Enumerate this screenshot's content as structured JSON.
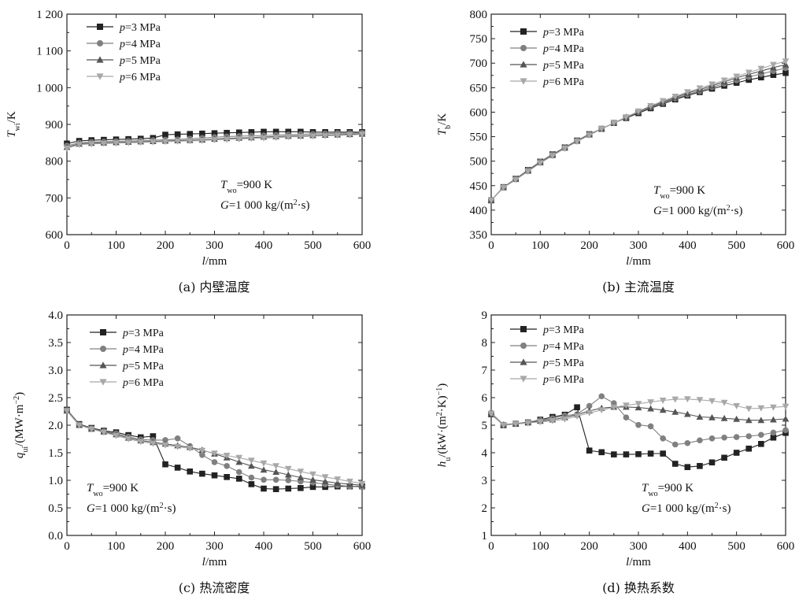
{
  "chart_data": [
    {
      "id": "a",
      "type": "line",
      "caption": "(a) 内壁温度",
      "xlabel": "l/mm",
      "ylabel": "T_wi/K",
      "xlim": [
        0,
        600
      ],
      "ylim": [
        600,
        1200
      ],
      "xticks": [
        0,
        100,
        200,
        300,
        400,
        500,
        600
      ],
      "yticks": [
        600,
        700,
        800,
        900,
        1000,
        1100,
        1200
      ],
      "ytick_labels": [
        "600",
        "700",
        "800",
        "900",
        "1 000",
        "1 100",
        "1 200"
      ],
      "legend_position": "top-left",
      "annotations": [
        "T_wo=900 K",
        "G=1 000 kg/(m²·s)"
      ],
      "x": [
        0,
        25,
        50,
        75,
        100,
        125,
        150,
        175,
        200,
        225,
        250,
        275,
        300,
        325,
        350,
        375,
        400,
        425,
        450,
        475,
        500,
        525,
        550,
        575,
        600
      ],
      "series": [
        {
          "name": "p=3 MPa",
          "marker": "square",
          "color": "#222222",
          "values": [
            848,
            855,
            857,
            858,
            859,
            860,
            861,
            863,
            872,
            873,
            874,
            875,
            876,
            877,
            878,
            879,
            880,
            880,
            880,
            880,
            879,
            879,
            879,
            879,
            879
          ]
        },
        {
          "name": "p=4 MPa",
          "marker": "circle",
          "color": "#808080",
          "values": [
            842,
            850,
            852,
            853,
            854,
            855,
            856,
            857,
            858,
            859,
            861,
            863,
            865,
            867,
            868,
            869,
            870,
            871,
            872,
            873,
            874,
            875,
            876,
            876,
            877
          ]
        },
        {
          "name": "p=5 MPa",
          "marker": "triangle-up",
          "color": "#555555",
          "values": [
            838,
            847,
            849,
            850,
            851,
            852,
            853,
            854,
            855,
            856,
            857,
            858,
            860,
            862,
            863,
            864,
            866,
            867,
            868,
            869,
            870,
            871,
            872,
            873,
            874
          ]
        },
        {
          "name": "p=6 MPa",
          "marker": "triangle-down",
          "color": "#a8a8a8",
          "values": [
            835,
            845,
            847,
            848,
            849,
            850,
            851,
            852,
            853,
            854,
            855,
            856,
            858,
            859,
            860,
            862,
            863,
            864,
            866,
            867,
            868,
            869,
            870,
            871,
            873
          ]
        }
      ]
    },
    {
      "id": "b",
      "type": "line",
      "caption": "(b) 主流温度",
      "xlabel": "l/mm",
      "ylabel": "T_b/K",
      "xlim": [
        0,
        600
      ],
      "ylim": [
        350,
        800
      ],
      "xticks": [
        0,
        100,
        200,
        300,
        400,
        500,
        600
      ],
      "yticks": [
        350,
        400,
        450,
        500,
        550,
        600,
        650,
        700,
        750,
        800
      ],
      "ytick_labels": [
        "350",
        "400",
        "450",
        "500",
        "550",
        "600",
        "650",
        "700",
        "750",
        "800"
      ],
      "legend_position": "top-left",
      "annotations": [
        "T_wo=900 K",
        "G=1 000 kg/(m²·s)"
      ],
      "x": [
        0,
        25,
        50,
        75,
        100,
        125,
        150,
        175,
        200,
        225,
        250,
        275,
        300,
        325,
        350,
        375,
        400,
        425,
        450,
        475,
        500,
        525,
        550,
        575,
        600
      ],
      "series": [
        {
          "name": "p=3 MPa",
          "marker": "square",
          "color": "#222222",
          "values": [
            420,
            447,
            464,
            482,
            499,
            514,
            528,
            542,
            555,
            566,
            578,
            588,
            598,
            608,
            617,
            626,
            634,
            641,
            648,
            654,
            660,
            666,
            671,
            676,
            680
          ]
        },
        {
          "name": "p=4 MPa",
          "marker": "circle",
          "color": "#808080",
          "values": [
            420,
            447,
            464,
            482,
            499,
            514,
            528,
            542,
            555,
            566,
            578,
            589,
            600,
            610,
            619,
            628,
            636,
            643,
            651,
            658,
            665,
            672,
            678,
            684,
            690
          ]
        },
        {
          "name": "p=5 MPa",
          "marker": "triangle-up",
          "color": "#555555",
          "values": [
            420,
            446,
            463,
            480,
            497,
            512,
            527,
            541,
            554,
            566,
            578,
            590,
            601,
            611,
            621,
            630,
            639,
            646,
            654,
            662,
            670,
            677,
            684,
            691,
            697
          ]
        },
        {
          "name": "p=6 MPa",
          "marker": "triangle-down",
          "color": "#a8a8a8",
          "values": [
            420,
            446,
            462,
            479,
            496,
            511,
            526,
            540,
            553,
            566,
            578,
            590,
            602,
            613,
            623,
            632,
            641,
            649,
            657,
            665,
            673,
            681,
            689,
            697,
            704
          ]
        }
      ]
    },
    {
      "id": "c",
      "type": "line",
      "caption": "(c) 热流密度",
      "xlabel": "l/mm",
      "ylabel": "q_ui/(MW·m⁻²)",
      "xlim": [
        0,
        600
      ],
      "ylim": [
        0,
        4
      ],
      "xticks": [
        0,
        100,
        200,
        300,
        400,
        500,
        600
      ],
      "yticks": [
        0,
        0.5,
        1,
        1.5,
        2,
        2.5,
        3,
        3.5,
        4
      ],
      "ytick_labels": [
        "0.0",
        "0.5",
        "1.0",
        "1.5",
        "2.0",
        "2.5",
        "3.0",
        "3.5",
        "4.0"
      ],
      "legend_position": "top-center",
      "annotations": [
        "T_wo=900 K",
        "G=1 000 kg/(m²·s)"
      ],
      "x": [
        0,
        25,
        50,
        75,
        100,
        125,
        150,
        175,
        200,
        225,
        250,
        275,
        300,
        325,
        350,
        375,
        400,
        425,
        450,
        475,
        500,
        525,
        550,
        575,
        600
      ],
      "series": [
        {
          "name": "p=3 MPa",
          "marker": "square",
          "color": "#222222",
          "values": [
            2.28,
            2.02,
            1.95,
            1.9,
            1.87,
            1.82,
            1.78,
            1.8,
            1.29,
            1.23,
            1.16,
            1.12,
            1.09,
            1.06,
            1.03,
            0.93,
            0.85,
            0.84,
            0.85,
            0.86,
            0.88,
            0.88,
            0.89,
            0.89,
            0.89
          ]
        },
        {
          "name": "p=4 MPa",
          "marker": "circle",
          "color": "#808080",
          "values": [
            2.27,
            2.01,
            1.94,
            1.89,
            1.85,
            1.79,
            1.74,
            1.73,
            1.73,
            1.76,
            1.62,
            1.46,
            1.33,
            1.26,
            1.15,
            1.05,
            1.01,
            1.01,
            1.0,
            0.98,
            0.96,
            0.93,
            0.91,
            0.89,
            0.88
          ]
        },
        {
          "name": "p=5 MPa",
          "marker": "triangle-up",
          "color": "#555555",
          "values": [
            2.26,
            2.0,
            1.93,
            1.88,
            1.83,
            1.77,
            1.72,
            1.69,
            1.66,
            1.63,
            1.6,
            1.55,
            1.48,
            1.41,
            1.33,
            1.26,
            1.19,
            1.15,
            1.1,
            1.05,
            1.01,
            0.98,
            0.95,
            0.93,
            0.91
          ]
        },
        {
          "name": "p=6 MPa",
          "marker": "triangle-down",
          "color": "#a8a8a8",
          "values": [
            2.26,
            2.0,
            1.93,
            1.87,
            1.81,
            1.75,
            1.7,
            1.67,
            1.64,
            1.61,
            1.58,
            1.54,
            1.49,
            1.45,
            1.41,
            1.36,
            1.31,
            1.26,
            1.21,
            1.16,
            1.11,
            1.06,
            1.02,
            0.98,
            0.94
          ]
        }
      ]
    },
    {
      "id": "d",
      "type": "line",
      "caption": "(d) 换热系数",
      "xlabel": "l/mm",
      "ylabel": "h_u/(kW·(m²·K)⁻¹)",
      "xlim": [
        0,
        600
      ],
      "ylim": [
        1,
        9
      ],
      "xticks": [
        0,
        100,
        200,
        300,
        400,
        500,
        600
      ],
      "yticks": [
        1,
        2,
        3,
        4,
        5,
        6,
        7,
        8,
        9
      ],
      "ytick_labels": [
        "1",
        "2",
        "3",
        "4",
        "5",
        "6",
        "7",
        "8",
        "9"
      ],
      "legend_position": "top-left",
      "annotations": [
        "T_wo=900 K",
        "G=1 000 kg/(m²·s)"
      ],
      "x": [
        0,
        25,
        50,
        75,
        100,
        125,
        150,
        175,
        200,
        225,
        250,
        275,
        300,
        325,
        350,
        375,
        400,
        425,
        450,
        475,
        500,
        525,
        550,
        575,
        600
      ],
      "series": [
        {
          "name": "p=3 MPa",
          "marker": "square",
          "color": "#222222",
          "values": [
            5.4,
            5.0,
            5.05,
            5.1,
            5.2,
            5.3,
            5.38,
            5.65,
            4.08,
            4.02,
            3.94,
            3.94,
            3.95,
            3.97,
            3.97,
            3.6,
            3.48,
            3.52,
            3.65,
            3.82,
            4.0,
            4.15,
            4.32,
            4.55,
            4.72
          ]
        },
        {
          "name": "p=4 MPa",
          "marker": "circle",
          "color": "#808080",
          "values": [
            5.45,
            5.02,
            5.06,
            5.11,
            5.18,
            5.25,
            5.35,
            5.4,
            5.7,
            6.05,
            5.8,
            5.28,
            5.01,
            4.96,
            4.52,
            4.3,
            4.35,
            4.45,
            4.52,
            4.55,
            4.57,
            4.6,
            4.65,
            4.73,
            4.82
          ]
        },
        {
          "name": "p=5 MPa",
          "marker": "triangle-up",
          "color": "#555555",
          "values": [
            5.42,
            5.01,
            5.05,
            5.1,
            5.15,
            5.2,
            5.28,
            5.38,
            5.52,
            5.62,
            5.66,
            5.66,
            5.64,
            5.6,
            5.55,
            5.48,
            5.4,
            5.3,
            5.28,
            5.25,
            5.22,
            5.18,
            5.18,
            5.2,
            5.23
          ]
        },
        {
          "name": "p=6 MPa",
          "marker": "triangle-down",
          "color": "#a8a8a8",
          "values": [
            5.42,
            5.0,
            5.04,
            5.08,
            5.12,
            5.16,
            5.22,
            5.33,
            5.45,
            5.55,
            5.65,
            5.72,
            5.78,
            5.84,
            5.9,
            5.94,
            5.95,
            5.92,
            5.88,
            5.82,
            5.7,
            5.6,
            5.62,
            5.65,
            5.68
          ]
        }
      ]
    }
  ]
}
